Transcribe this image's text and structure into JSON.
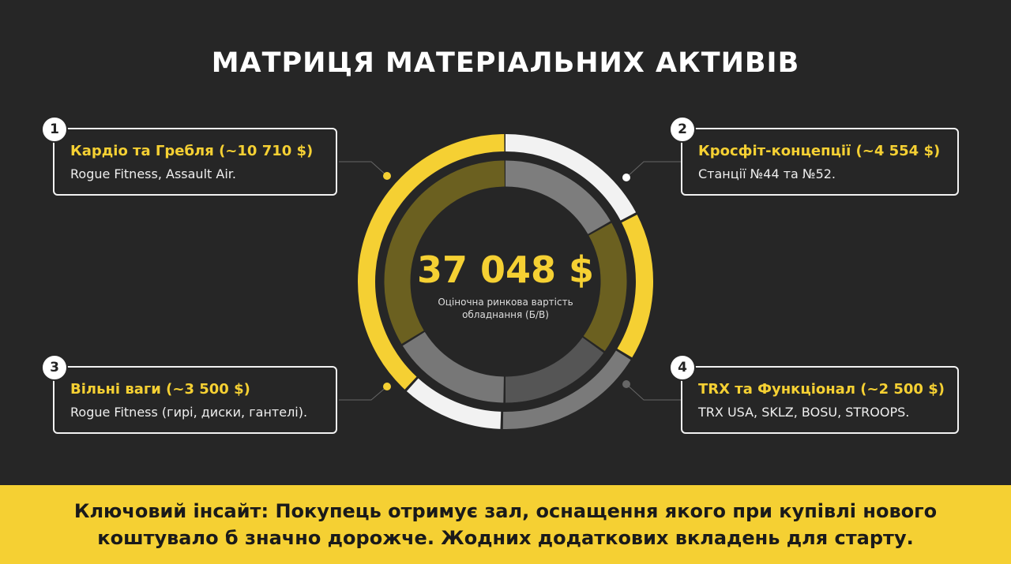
{
  "title": "МАТРИЦЯ МАТЕРІАЛЬНИХ АКТИВІВ",
  "center": {
    "value": "37 048 $",
    "caption": "Оціночна ринкова вартість обладнання (Б/В)"
  },
  "cards": [
    {
      "number": "1",
      "title": "Кардіо та Гребля (~10 710 $)",
      "description": "Rogue Fitness, Assault Air."
    },
    {
      "number": "2",
      "title": "Кросфіт-концепції (~4 554 $)",
      "description": "Станції №44 та №52."
    },
    {
      "number": "3",
      "title": "Вільні ваги (~3 500 $)",
      "description": "Rogue Fitness (гирі, диски, гантелі)."
    },
    {
      "number": "4",
      "title": "TRX та Функціонал (~2 500 $)",
      "description": "TRX USA, SKLZ, BOSU, STROOPS."
    }
  ],
  "insight": {
    "label": "Ключовий інсайт:",
    "text": "Покупець отримує зал, оснащення якого при купівлі нового коштувало б значно дорожче. Жодних додаткових вкладень для старту."
  }
}
